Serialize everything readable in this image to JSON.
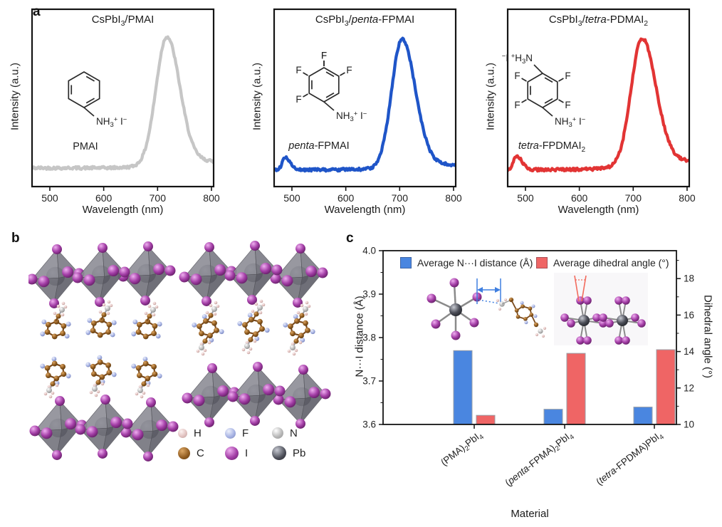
{
  "panels": {
    "a": "a",
    "b": "b",
    "c": "c"
  },
  "palette": {
    "curve_gray": "#c6c6c6",
    "curve_blue": "#1f55c8",
    "curve_red": "#e23434",
    "bar_blue": "#4a86e0",
    "bar_red": "#ef6565",
    "annotation_blue": "#3f7fe0",
    "annotation_red": "#f26b5e",
    "atom_H": "#e2c3c1",
    "atom_F": "#a8b4e4",
    "atom_N": "#b9b9b9",
    "atom_C": "#8f5a1e",
    "atom_I": "#a33ea6",
    "atom_Pb": "#4b4d57",
    "octahedron_gray": "#77777f"
  },
  "spectra": {
    "xlabel": "Wavelength (nm)",
    "ylabel": "Intensity (a.u.)",
    "x_ticks": [
      500,
      600,
      700,
      800
    ],
    "x_range": [
      467,
      804
    ],
    "labels": {
      "F": "F",
      "ammonium": [
        {
          "t": "NH"
        },
        {
          "t": "3",
          "sub": true
        },
        {
          "t": "+",
          "sup": true
        },
        {
          "t": " I"
        },
        {
          "t": "−",
          "sup": true
        }
      ],
      "ammonium_top": [
        {
          "t": "−",
          "sup": true
        },
        {
          "t": "I "
        },
        {
          "t": "+",
          "sup": true
        },
        {
          "t": "H"
        },
        {
          "t": "3",
          "sub": true
        },
        {
          "t": "N"
        }
      ]
    },
    "plots": [
      {
        "id": "pmai",
        "title": [
          {
            "t": "CsPbI"
          },
          {
            "t": "3",
            "sub": true
          },
          {
            "t": "/PMAI"
          }
        ],
        "mol_label": [
          {
            "t": "PMAI"
          }
        ],
        "color": "#c6c6c6",
        "curve": {
          "baseline": 0.105,
          "peak_nm": 717,
          "peaks": [
            {
              "c": 717,
              "sl": 20,
              "sr": 24,
              "h": 0.715
            },
            {
              "c": 775,
              "sl": 60,
              "sr": 60,
              "h": 0.04
            }
          ]
        }
      },
      {
        "id": "penta-fpmai",
        "title": [
          {
            "t": "CsPbI"
          },
          {
            "t": "3",
            "sub": true
          },
          {
            "t": "/"
          },
          {
            "t": "penta",
            "i": true
          },
          {
            "t": "-FPMAI"
          }
        ],
        "mol_label": [
          {
            "t": "penta",
            "i": true
          },
          {
            "t": "-FPMAI"
          }
        ],
        "color": "#1f55c8",
        "curve": {
          "baseline": 0.095,
          "peak_nm": 704,
          "peaks": [
            {
              "c": 487,
              "sl": 5,
              "sr": 9,
              "h": 0.07
            },
            {
              "c": 704,
              "sl": 19,
              "sr": 25,
              "h": 0.72
            },
            {
              "c": 770,
              "sl": 60,
              "sr": 60,
              "h": 0.03
            }
          ]
        }
      },
      {
        "id": "tetra-pdmai",
        "title": [
          {
            "t": "CsPbI"
          },
          {
            "t": "3",
            "sub": true
          },
          {
            "t": "/"
          },
          {
            "t": "tetra",
            "i": true
          },
          {
            "t": "-PDMAI"
          },
          {
            "t": "2",
            "sub": true
          }
        ],
        "mol_label": [
          {
            "t": "tetra",
            "i": true
          },
          {
            "t": "-FPDMAI"
          },
          {
            "t": "2",
            "sub": true
          }
        ],
        "color": "#e23434",
        "curve": {
          "baseline": 0.095,
          "peak_nm": 716,
          "peaks": [
            {
              "c": 483,
              "sl": 5,
              "sr": 10,
              "h": 0.08
            },
            {
              "c": 716,
              "sl": 20,
              "sr": 26,
              "h": 0.71
            },
            {
              "c": 780,
              "sl": 70,
              "sr": 70,
              "h": 0.05
            }
          ]
        }
      }
    ]
  },
  "structures_b": {
    "legend": [
      {
        "symbol": "H"
      },
      {
        "symbol": "F"
      },
      {
        "symbol": "N"
      },
      {
        "symbol": "C"
      },
      {
        "symbol": "I"
      },
      {
        "symbol": "Pb"
      }
    ]
  },
  "chart_data": {
    "type": "bar",
    "xlabel": "Material",
    "ylabel_left": "N···I distance (Å)",
    "ylabel_right": "Dihedral angle (°)",
    "categories": [
      "(PMA)2PbI4",
      "(penta-FPMA)2PbI4",
      "(tetra-FPDMA)PbI4"
    ],
    "categories_rich": [
      [
        {
          "t": "(PMA)"
        },
        {
          "t": "2",
          "sub": true
        },
        {
          "t": "PbI"
        },
        {
          "t": "4",
          "sub": true
        }
      ],
      [
        {
          "t": "("
        },
        {
          "t": "penta",
          "i": true
        },
        {
          "t": "-FPMA)"
        },
        {
          "t": "2",
          "sub": true
        },
        {
          "t": "PbI"
        },
        {
          "t": "4",
          "sub": true
        }
      ],
      [
        {
          "t": "("
        },
        {
          "t": "tetra",
          "i": true
        },
        {
          "t": "-FPDMA)PbI"
        },
        {
          "t": "4",
          "sub": true
        }
      ]
    ],
    "series": [
      {
        "name": "Average N···I distance (Å)",
        "axis": "left",
        "color": "#4a86e0",
        "values": [
          3.77,
          3.635,
          3.64
        ]
      },
      {
        "name": "Average dihedral angle (°)",
        "axis": "right",
        "color": "#ef6565",
        "values": [
          10.5,
          13.9,
          14.1
        ]
      }
    ],
    "ylim_left": [
      3.6,
      4.0
    ],
    "left_ticks": [
      3.6,
      3.7,
      3.8,
      3.9,
      4.0
    ],
    "right_ticks": [
      10,
      12,
      14,
      16,
      18
    ],
    "ylim_right_visible": [
      10,
      19.5
    ],
    "grid": false,
    "legend_position": "top-inside"
  }
}
